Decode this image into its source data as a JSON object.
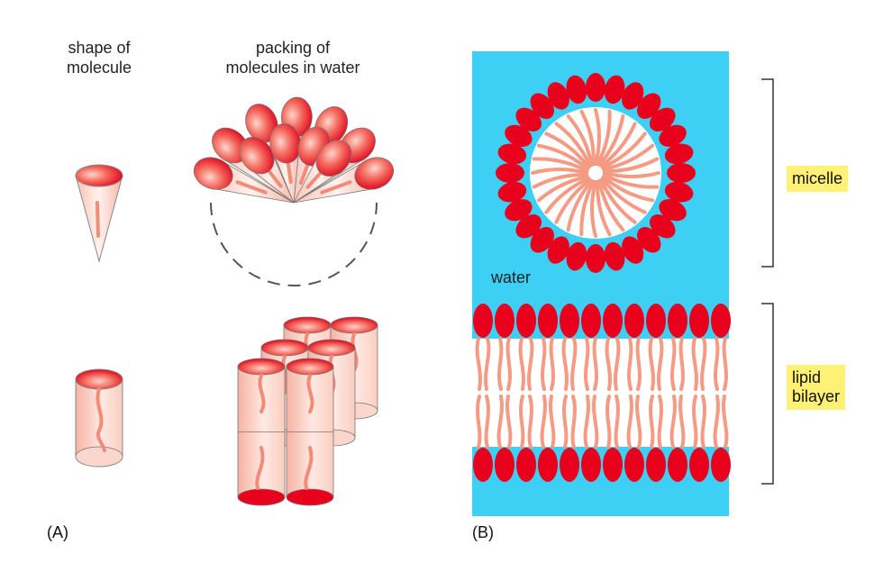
{
  "panel_a": {
    "col1_heading": "shape of\nmolecule",
    "col2_heading": "packing of\nmolecules in water",
    "label": "(A)"
  },
  "panel_b": {
    "water_label": "water",
    "micelle_label": "micelle",
    "bilayer_label": "lipid\nbilayer",
    "label": "(B)"
  },
  "colors": {
    "water": "#3ecff5",
    "head": "#e8001c",
    "tail": "#f59a83",
    "label_bg": "#fff176"
  }
}
